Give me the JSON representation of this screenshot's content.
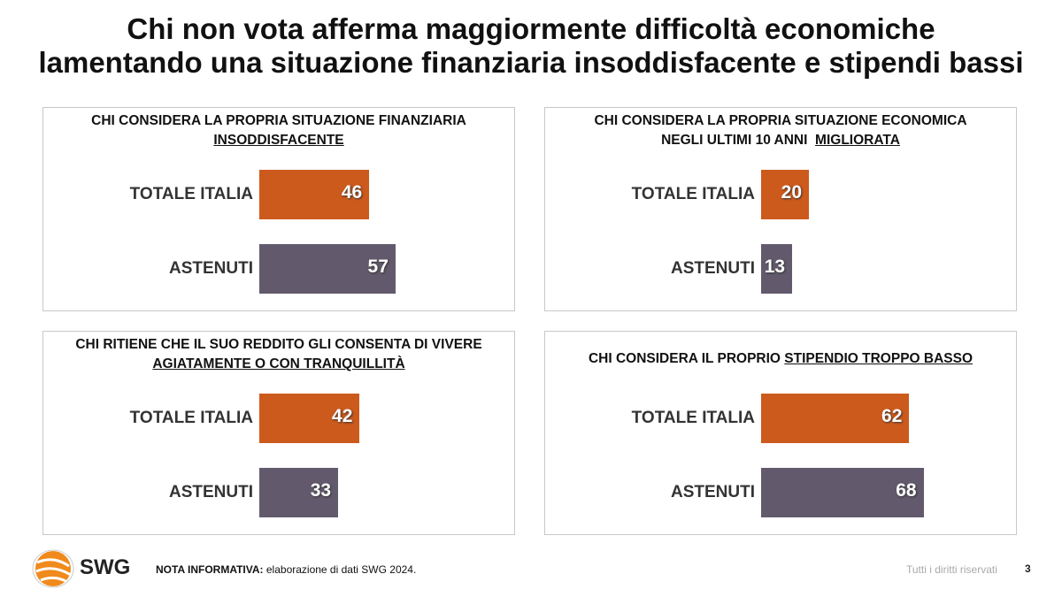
{
  "title": [
    "Chi non vota afferma maggiormente difficoltà economiche",
    "lamentando una situazione finanziaria insoddisfacente e stipendi bassi"
  ],
  "colors": {
    "totale": "#cc5a1c",
    "astenuti": "#625a6c"
  },
  "chart_data": [
    {
      "type": "bar",
      "orientation": "horizontal",
      "title_lines": [
        [
          {
            "t": "CHI CONSIDERA LA PROPRIA SITUAZIONE FINANZIARIA",
            "u": false
          }
        ],
        [
          {
            "t": "INSODDISFACENTE",
            "u": true
          }
        ]
      ],
      "categories": [
        "TOTALE ITALIA",
        "ASTENUTI"
      ],
      "values": [
        46,
        57
      ]
    },
    {
      "type": "bar",
      "orientation": "horizontal",
      "title_lines": [
        [
          {
            "t": "CHI CONSIDERA LA PROPRIA SITUAZIONE ECONOMICA",
            "u": false
          }
        ],
        [
          {
            "t": "NEGLI ULTIMI 10 ANNI  ",
            "u": false
          },
          {
            "t": "MIGLIORATA",
            "u": true
          }
        ]
      ],
      "categories": [
        "TOTALE ITALIA",
        "ASTENUTI"
      ],
      "values": [
        20,
        13
      ]
    },
    {
      "type": "bar",
      "orientation": "horizontal",
      "title_lines": [
        [
          {
            "t": "CHI RITIENE CHE IL SUO REDDITO GLI CONSENTA DI VIVERE",
            "u": false
          }
        ],
        [
          {
            "t": "AGIATAMENTE O CON TRANQUILLITÀ",
            "u": true
          }
        ]
      ],
      "categories": [
        "TOTALE ITALIA",
        "ASTENUTI"
      ],
      "values": [
        42,
        33
      ]
    },
    {
      "type": "bar",
      "orientation": "horizontal",
      "title_lines": [
        [
          {
            "t": "CHI CONSIDERA IL PROPRIO ",
            "u": false
          },
          {
            "t": "STIPENDIO TROPPO BASSO",
            "u": true
          }
        ]
      ],
      "categories": [
        "TOTALE ITALIA",
        "ASTENUTI"
      ],
      "values": [
        62,
        68
      ]
    }
  ],
  "footer": {
    "logo": "SWG",
    "note_label": "NOTA INFORMATIVA:",
    "note_text": " elaborazione di dati SWG 2024.",
    "rights": "Tutti i diritti riservati",
    "page": "3"
  }
}
